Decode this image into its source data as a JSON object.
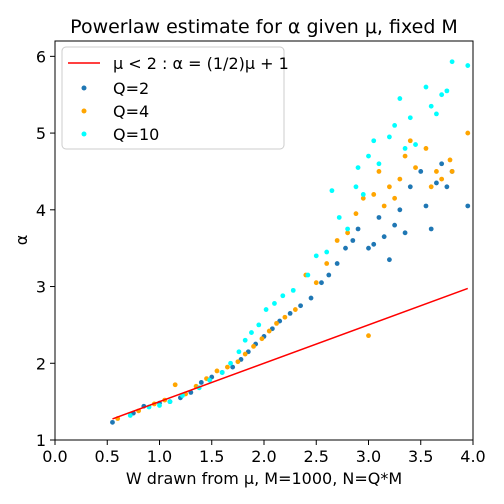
{
  "chart_data": {
    "type": "scatter",
    "title": "Powerlaw estimate for α given μ, fixed M",
    "xlabel": "W drawn from μ, M=1000, N=Q*M",
    "ylabel": "α",
    "xlim": [
      0.0,
      4.0
    ],
    "ylim": [
      1.0,
      6.2
    ],
    "xticks": [
      "0.0",
      "0.5",
      "1.0",
      "1.5",
      "2.0",
      "2.5",
      "3.0",
      "3.5",
      "4.0"
    ],
    "yticks": [
      "1",
      "2",
      "3",
      "4",
      "5",
      "6"
    ],
    "grid": false,
    "legend_position": "top-left",
    "line": {
      "name": "μ < 2 :  α = (1/2)μ + 1",
      "color": "#ff0000",
      "x": [
        0.55,
        3.95
      ],
      "y": [
        1.275,
        2.975
      ]
    },
    "series": [
      {
        "name": "Q=2",
        "color": "#1f77b4",
        "points": [
          [
            0.55,
            1.23
          ],
          [
            0.75,
            1.35
          ],
          [
            0.85,
            1.44
          ],
          [
            1.0,
            1.48
          ],
          [
            1.1,
            1.5
          ],
          [
            1.2,
            1.55
          ],
          [
            1.3,
            1.62
          ],
          [
            1.4,
            1.75
          ],
          [
            1.5,
            1.82
          ],
          [
            1.6,
            1.88
          ],
          [
            1.7,
            1.95
          ],
          [
            1.78,
            2.05
          ],
          [
            1.85,
            2.15
          ],
          [
            1.92,
            2.25
          ],
          [
            2.0,
            2.35
          ],
          [
            2.08,
            2.45
          ],
          [
            2.15,
            2.55
          ],
          [
            2.25,
            2.65
          ],
          [
            2.35,
            2.75
          ],
          [
            2.45,
            2.85
          ],
          [
            2.55,
            3.05
          ],
          [
            2.62,
            3.15
          ],
          [
            2.7,
            3.3
          ],
          [
            2.78,
            3.5
          ],
          [
            2.85,
            3.6
          ],
          [
            2.9,
            3.75
          ],
          [
            3.0,
            3.5
          ],
          [
            3.05,
            3.55
          ],
          [
            3.1,
            3.9
          ],
          [
            3.15,
            3.65
          ],
          [
            3.2,
            3.35
          ],
          [
            3.25,
            3.8
          ],
          [
            3.3,
            4.0
          ],
          [
            3.35,
            3.7
          ],
          [
            3.4,
            4.3
          ],
          [
            3.5,
            4.5
          ],
          [
            3.55,
            4.05
          ],
          [
            3.6,
            3.75
          ],
          [
            3.65,
            4.35
          ],
          [
            3.7,
            4.6
          ],
          [
            3.75,
            4.3
          ],
          [
            3.8,
            4.5
          ],
          [
            3.95,
            4.05
          ]
        ]
      },
      {
        "name": "Q=4",
        "color": "#ffa500",
        "points": [
          [
            0.6,
            1.28
          ],
          [
            0.8,
            1.38
          ],
          [
            0.95,
            1.47
          ],
          [
            1.05,
            1.52
          ],
          [
            1.15,
            1.72
          ],
          [
            1.25,
            1.6
          ],
          [
            1.35,
            1.7
          ],
          [
            1.45,
            1.8
          ],
          [
            1.55,
            1.9
          ],
          [
            1.65,
            1.95
          ],
          [
            1.75,
            2.02
          ],
          [
            1.82,
            2.12
          ],
          [
            1.9,
            2.22
          ],
          [
            1.98,
            2.32
          ],
          [
            2.05,
            2.42
          ],
          [
            2.12,
            2.52
          ],
          [
            2.2,
            2.6
          ],
          [
            2.3,
            2.7
          ],
          [
            2.4,
            3.15
          ],
          [
            2.5,
            3.05
          ],
          [
            2.6,
            3.3
          ],
          [
            2.7,
            3.6
          ],
          [
            2.8,
            3.7
          ],
          [
            2.88,
            3.95
          ],
          [
            2.95,
            4.15
          ],
          [
            3.0,
            2.36
          ],
          [
            3.05,
            4.2
          ],
          [
            3.1,
            4.5
          ],
          [
            3.15,
            4.05
          ],
          [
            3.2,
            4.3
          ],
          [
            3.25,
            4.15
          ],
          [
            3.3,
            4.4
          ],
          [
            3.35,
            4.7
          ],
          [
            3.4,
            4.9
          ],
          [
            3.45,
            4.55
          ],
          [
            3.55,
            4.8
          ],
          [
            3.6,
            4.3
          ],
          [
            3.65,
            4.5
          ],
          [
            3.7,
            4.4
          ],
          [
            3.78,
            4.65
          ],
          [
            3.8,
            4.5
          ],
          [
            3.95,
            5.0
          ]
        ]
      },
      {
        "name": "Q=10",
        "color": "#00ffff",
        "points": [
          [
            0.72,
            1.32
          ],
          [
            0.9,
            1.43
          ],
          [
            1.0,
            1.45
          ],
          [
            1.1,
            1.5
          ],
          [
            1.22,
            1.58
          ],
          [
            1.38,
            1.68
          ],
          [
            1.48,
            1.78
          ],
          [
            1.6,
            1.88
          ],
          [
            1.68,
            2.0
          ],
          [
            1.76,
            2.15
          ],
          [
            1.82,
            2.3
          ],
          [
            1.88,
            2.4
          ],
          [
            1.95,
            2.5
          ],
          [
            2.02,
            2.7
          ],
          [
            2.1,
            2.78
          ],
          [
            2.18,
            2.88
          ],
          [
            2.28,
            2.95
          ],
          [
            2.42,
            3.15
          ],
          [
            2.5,
            3.4
          ],
          [
            2.6,
            3.45
          ],
          [
            2.65,
            4.25
          ],
          [
            2.72,
            3.9
          ],
          [
            2.8,
            3.75
          ],
          [
            2.88,
            4.3
          ],
          [
            2.9,
            4.55
          ],
          [
            2.95,
            4.2
          ],
          [
            3.0,
            4.7
          ],
          [
            3.05,
            4.9
          ],
          [
            3.1,
            4.6
          ],
          [
            3.2,
            4.95
          ],
          [
            3.25,
            5.1
          ],
          [
            3.3,
            5.45
          ],
          [
            3.35,
            4.8
          ],
          [
            3.4,
            5.2
          ],
          [
            3.45,
            4.85
          ],
          [
            3.55,
            5.6
          ],
          [
            3.6,
            5.35
          ],
          [
            3.65,
            5.25
          ],
          [
            3.7,
            5.5
          ],
          [
            3.75,
            5.55
          ],
          [
            3.8,
            5.93
          ],
          [
            3.95,
            5.88
          ]
        ]
      }
    ]
  }
}
